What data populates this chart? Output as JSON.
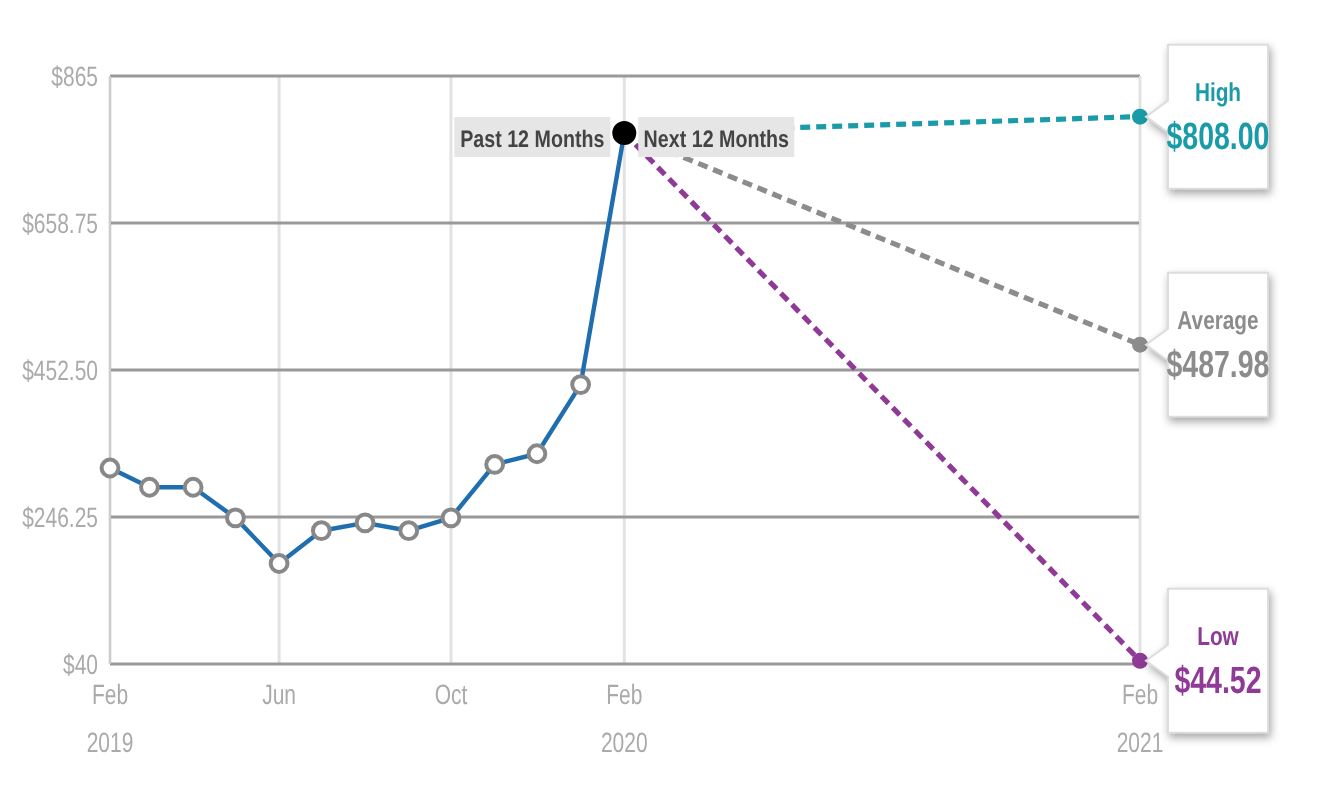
{
  "chart_data": {
    "type": "line",
    "x": [
      "2019-02",
      "2019-03",
      "2019-04",
      "2019-05",
      "2019-06",
      "2019-07",
      "2019-08",
      "2019-09",
      "2019-10",
      "2019-11",
      "2019-12",
      "2020-01",
      "2020-02"
    ],
    "series": [
      {
        "color": "#1f6fb0",
        "marker": "circle",
        "values": [
          315,
          288,
          288,
          245,
          181,
          227,
          238,
          227,
          245,
          320,
          335,
          432,
          785
        ]
      },
      {
        "name": "High",
        "type": "line",
        "x": [
          "2020-02",
          "2021-02"
        ],
        "values": [
          785,
          808
        ],
        "value_labels": [
          null,
          "$808.00"
        ],
        "color": "#1a9ba8",
        "line_style": "dashed",
        "marker": "circle"
      },
      {
        "name": "Average",
        "type": "line",
        "x": [
          "2020-02",
          "2021-02"
        ],
        "values": [
          785,
          487.98
        ],
        "value_labels": [
          null,
          "$487.98"
        ],
        "color": "#8c8c8c",
        "line_style": "dashed",
        "marker": "circle"
      },
      {
        "name": "Low",
        "type": "line",
        "x": [
          "2020-02",
          "2021-02"
        ],
        "values": [
          785,
          44.52
        ],
        "value_labels": [
          null,
          "$44.52"
        ],
        "color": "#8e3a96",
        "line_style": "dashed",
        "marker": "circle"
      }
    ],
    "xlim": [
      "2019-02",
      "2021-02"
    ],
    "xticks": [
      {
        "value": "2019-02",
        "label": "Feb 2019"
      },
      {
        "value": "2019-06",
        "label": "Jun"
      },
      {
        "value": "2019-10",
        "label": "Oct"
      },
      {
        "value": "2020-02",
        "label": "Feb 2020"
      },
      {
        "value": "2021-02",
        "label": "Feb 2021"
      }
    ],
    "ylim": [
      40,
      865
    ],
    "yticks": [
      {
        "value": 40,
        "label": "$40"
      },
      {
        "value": 246.25,
        "label": "$246.25"
      },
      {
        "value": 452.5,
        "label": "$452.50"
      },
      {
        "value": 658.75,
        "label": "$658.75"
      },
      {
        "value": 865,
        "label": "$865"
      }
    ],
    "grid": true,
    "annotations": [
      {
        "text": "Past 12 Months",
        "x": "2020-02",
        "y": 785
      },
      {
        "text": "Next 12 Months",
        "x": "2020-02",
        "y": 785
      }
    ]
  }
}
